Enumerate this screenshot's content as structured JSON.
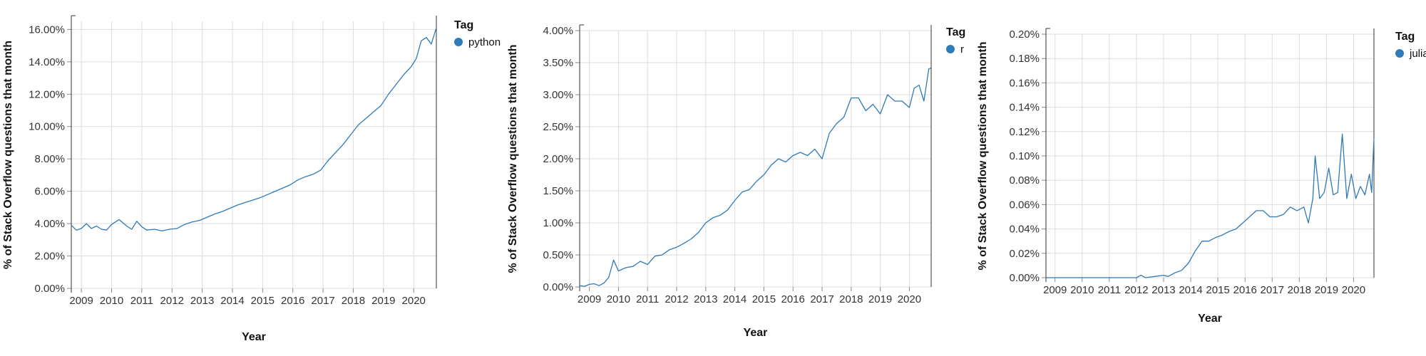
{
  "colors": {
    "series": "#2f7ab8",
    "grid": "#dddddd",
    "axis": "#333333"
  },
  "chart_data": [
    {
      "type": "line",
      "xlabel": "Year",
      "ylabel": "% of Stack Overflow questions that month",
      "x_ticks": [
        "2009",
        "2010",
        "2011",
        "2012",
        "2013",
        "2014",
        "2015",
        "2016",
        "2017",
        "2018",
        "2019",
        "2020"
      ],
      "xlim": [
        "2008-09",
        "2020-10"
      ],
      "y_ticks": [
        "0.00%",
        "2.00%",
        "4.00%",
        "6.00%",
        "8.00%",
        "10.00%",
        "12.00%",
        "14.00%",
        "16.00%"
      ],
      "ylim": [
        0,
        0.165
      ],
      "grid": true,
      "legend": {
        "title": "Tag",
        "position": "top-right"
      },
      "series": [
        {
          "name": "python",
          "color": "#2f7ab8",
          "points": [
            [
              "2008-09",
              0.039
            ],
            [
              "2008-11",
              0.036
            ],
            [
              "2009-01",
              0.037
            ],
            [
              "2009-03",
              0.04
            ],
            [
              "2009-05",
              0.037
            ],
            [
              "2009-07",
              0.0385
            ],
            [
              "2009-09",
              0.0365
            ],
            [
              "2009-11",
              0.036
            ],
            [
              "2010-01",
              0.0395
            ],
            [
              "2010-04",
              0.0425
            ],
            [
              "2010-07",
              0.0385
            ],
            [
              "2010-09",
              0.0365
            ],
            [
              "2010-11",
              0.0415
            ],
            [
              "2011-01",
              0.038
            ],
            [
              "2011-03",
              0.036
            ],
            [
              "2011-06",
              0.0365
            ],
            [
              "2011-09",
              0.0355
            ],
            [
              "2011-12",
              0.0365
            ],
            [
              "2012-03",
              0.037
            ],
            [
              "2012-06",
              0.0395
            ],
            [
              "2012-09",
              0.041
            ],
            [
              "2012-12",
              0.042
            ],
            [
              "2013-03",
              0.044
            ],
            [
              "2013-06",
              0.046
            ],
            [
              "2013-09",
              0.0475
            ],
            [
              "2013-12",
              0.0495
            ],
            [
              "2014-03",
              0.0515
            ],
            [
              "2014-06",
              0.053
            ],
            [
              "2014-09",
              0.0545
            ],
            [
              "2014-12",
              0.056
            ],
            [
              "2015-03",
              0.058
            ],
            [
              "2015-06",
              0.06
            ],
            [
              "2015-09",
              0.062
            ],
            [
              "2015-12",
              0.064
            ],
            [
              "2016-03",
              0.067
            ],
            [
              "2016-06",
              0.069
            ],
            [
              "2016-09",
              0.0705
            ],
            [
              "2016-12",
              0.073
            ],
            [
              "2017-03",
              0.079
            ],
            [
              "2017-06",
              0.084
            ],
            [
              "2017-09",
              0.089
            ],
            [
              "2017-12",
              0.095
            ],
            [
              "2018-03",
              0.101
            ],
            [
              "2018-06",
              0.105
            ],
            [
              "2018-09",
              0.109
            ],
            [
              "2018-12",
              0.113
            ],
            [
              "2019-03",
              0.12
            ],
            [
              "2019-06",
              0.126
            ],
            [
              "2019-09",
              0.132
            ],
            [
              "2019-12",
              0.137
            ],
            [
              "2020-02",
              0.142
            ],
            [
              "2020-04",
              0.153
            ],
            [
              "2020-06",
              0.155
            ],
            [
              "2020-08",
              0.151
            ],
            [
              "2020-10",
              0.161
            ]
          ]
        }
      ]
    },
    {
      "type": "line",
      "xlabel": "Year",
      "ylabel": "% of Stack Overflow questions that month",
      "x_ticks": [
        "2009",
        "2010",
        "2011",
        "2012",
        "2013",
        "2014",
        "2015",
        "2016",
        "2017",
        "2018",
        "2019",
        "2020"
      ],
      "xlim": [
        "2008-09",
        "2020-10"
      ],
      "y_ticks": [
        "0.00%",
        "0.50%",
        "1.00%",
        "1.50%",
        "2.00%",
        "2.50%",
        "3.00%",
        "3.50%",
        "4.00%"
      ],
      "ylim": [
        0,
        0.04
      ],
      "grid": true,
      "legend": {
        "title": "Tag",
        "position": "top-right"
      },
      "series": [
        {
          "name": "r",
          "color": "#2f7ab8",
          "points": [
            [
              "2008-09",
              0.0002
            ],
            [
              "2008-11",
              0.0001
            ],
            [
              "2009-01",
              0.0004
            ],
            [
              "2009-03",
              0.0005
            ],
            [
              "2009-05",
              0.0002
            ],
            [
              "2009-07",
              0.0006
            ],
            [
              "2009-09",
              0.0015
            ],
            [
              "2009-11",
              0.0042
            ],
            [
              "2010-01",
              0.0025
            ],
            [
              "2010-04",
              0.003
            ],
            [
              "2010-07",
              0.0032
            ],
            [
              "2010-10",
              0.004
            ],
            [
              "2011-01",
              0.0035
            ],
            [
              "2011-04",
              0.0048
            ],
            [
              "2011-07",
              0.005
            ],
            [
              "2011-10",
              0.0058
            ],
            [
              "2012-01",
              0.0062
            ],
            [
              "2012-04",
              0.0068
            ],
            [
              "2012-07",
              0.0075
            ],
            [
              "2012-10",
              0.0085
            ],
            [
              "2013-01",
              0.01
            ],
            [
              "2013-04",
              0.0108
            ],
            [
              "2013-07",
              0.0112
            ],
            [
              "2013-10",
              0.012
            ],
            [
              "2014-01",
              0.0135
            ],
            [
              "2014-04",
              0.0148
            ],
            [
              "2014-07",
              0.0152
            ],
            [
              "2014-10",
              0.0165
            ],
            [
              "2015-01",
              0.0175
            ],
            [
              "2015-04",
              0.019
            ],
            [
              "2015-07",
              0.02
            ],
            [
              "2015-10",
              0.0195
            ],
            [
              "2016-01",
              0.0205
            ],
            [
              "2016-04",
              0.021
            ],
            [
              "2016-07",
              0.0205
            ],
            [
              "2016-10",
              0.0215
            ],
            [
              "2017-01",
              0.02
            ],
            [
              "2017-04",
              0.024
            ],
            [
              "2017-07",
              0.0255
            ],
            [
              "2017-10",
              0.0265
            ],
            [
              "2018-01",
              0.0295
            ],
            [
              "2018-04",
              0.0295
            ],
            [
              "2018-07",
              0.0275
            ],
            [
              "2018-10",
              0.0285
            ],
            [
              "2019-01",
              0.027
            ],
            [
              "2019-04",
              0.03
            ],
            [
              "2019-07",
              0.029
            ],
            [
              "2019-10",
              0.029
            ],
            [
              "2020-01",
              0.028
            ],
            [
              "2020-03",
              0.031
            ],
            [
              "2020-05",
              0.0315
            ],
            [
              "2020-07",
              0.029
            ],
            [
              "2020-09",
              0.034
            ],
            [
              "2020-10",
              0.0342
            ]
          ]
        }
      ]
    },
    {
      "type": "line",
      "xlabel": "Year",
      "ylabel": "% of Stack Overflow questions that month",
      "x_ticks": [
        "2009",
        "2010",
        "2011",
        "2012",
        "2013",
        "2014",
        "2015",
        "2016",
        "2017",
        "2018",
        "2019",
        "2020"
      ],
      "xlim": [
        "2008-09",
        "2020-10"
      ],
      "y_ticks": [
        "0.00%",
        "0.02%",
        "0.04%",
        "0.06%",
        "0.08%",
        "0.10%",
        "0.12%",
        "0.14%",
        "0.16%",
        "0.18%",
        "0.20%"
      ],
      "ylim": [
        0,
        0.002
      ],
      "grid": true,
      "legend": {
        "title": "Tag",
        "position": "top-right"
      },
      "series": [
        {
          "name": "julia",
          "color": "#2f7ab8",
          "points": [
            [
              "2008-09",
              0.0
            ],
            [
              "2012-01",
              0.0
            ],
            [
              "2012-03",
              2e-05
            ],
            [
              "2012-05",
              0.0
            ],
            [
              "2012-09",
              1e-05
            ],
            [
              "2013-01",
              2e-05
            ],
            [
              "2013-03",
              1e-05
            ],
            [
              "2013-06",
              4e-05
            ],
            [
              "2013-09",
              6e-05
            ],
            [
              "2013-12",
              0.00012
            ],
            [
              "2014-03",
              0.00022
            ],
            [
              "2014-06",
              0.0003
            ],
            [
              "2014-09",
              0.0003
            ],
            [
              "2014-12",
              0.00033
            ],
            [
              "2015-03",
              0.00035
            ],
            [
              "2015-06",
              0.00038
            ],
            [
              "2015-09",
              0.0004
            ],
            [
              "2015-12",
              0.00045
            ],
            [
              "2016-03",
              0.0005
            ],
            [
              "2016-06",
              0.00055
            ],
            [
              "2016-09",
              0.00055
            ],
            [
              "2016-12",
              0.0005
            ],
            [
              "2017-03",
              0.0005
            ],
            [
              "2017-06",
              0.00052
            ],
            [
              "2017-09",
              0.00058
            ],
            [
              "2017-12",
              0.00055
            ],
            [
              "2018-03",
              0.00058
            ],
            [
              "2018-05",
              0.00045
            ],
            [
              "2018-07",
              0.00065
            ],
            [
              "2018-08",
              0.001
            ],
            [
              "2018-10",
              0.00065
            ],
            [
              "2018-12",
              0.0007
            ],
            [
              "2019-02",
              0.0009
            ],
            [
              "2019-04",
              0.00068
            ],
            [
              "2019-06",
              0.0007
            ],
            [
              "2019-08",
              0.00118
            ],
            [
              "2019-10",
              0.00065
            ],
            [
              "2019-12",
              0.00085
            ],
            [
              "2020-02",
              0.00065
            ],
            [
              "2020-04",
              0.00075
            ],
            [
              "2020-06",
              0.00068
            ],
            [
              "2020-08",
              0.00085
            ],
            [
              "2020-09",
              0.0007
            ],
            [
              "2020-10",
              0.00115
            ]
          ]
        }
      ]
    }
  ]
}
